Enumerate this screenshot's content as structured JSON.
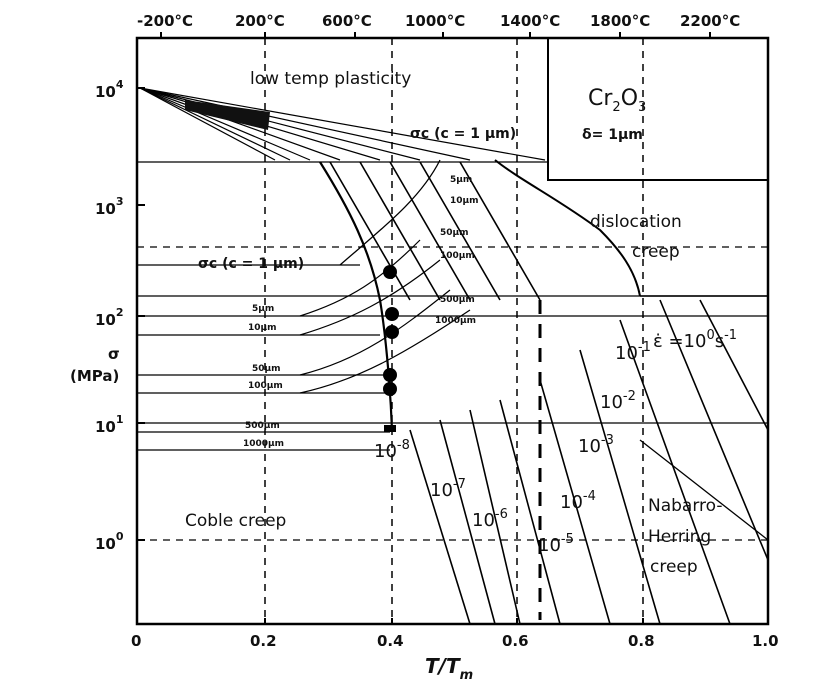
{
  "material": {
    "formula": "Cr",
    "subscript1": "2",
    "o": "O",
    "subscript2": "3",
    "delta": "δ= 1μm"
  },
  "x_axis": {
    "label": "T/T",
    "label_sub": "m",
    "ticks": [
      "0",
      "0.2",
      "0.4",
      "0.6",
      "0.8",
      "1.0"
    ]
  },
  "top_axis": {
    "ticks": [
      "-200°C",
      "200°C",
      "600°C",
      "1000°C",
      "1400°C",
      "1800°C",
      "2200°C"
    ]
  },
  "y_axis": {
    "label_line1": "σ",
    "label_line2": "(MPa)",
    "ticks": [
      {
        "base": "10",
        "exp": "4"
      },
      {
        "base": "10",
        "exp": "3"
      },
      {
        "base": "10",
        "exp": "2"
      },
      {
        "base": "10",
        "exp": "1"
      },
      {
        "base": "10",
        "exp": "0"
      }
    ]
  },
  "regions": {
    "low_temp": "low temp plasticity",
    "dislocation_1": "dislocation",
    "dislocation_2": "creep",
    "coble": "Coble creep",
    "nh_1": "Nabarro-",
    "nh_2": "Herring",
    "nh_3": "creep"
  },
  "sigma_labels": {
    "upper": "σc (c = 1 μm)",
    "lower": "σc (c = 1 μm)"
  },
  "grain_labels_left": [
    "5μm",
    "10μm",
    "50μm",
    "100μm",
    "500μm",
    "1000μm"
  ],
  "grain_labels_mid": [
    "5μm",
    "10μm",
    "50μm",
    "100μm",
    "500μm",
    "1000μm"
  ],
  "rate_labels": {
    "r0": "ε̇ =10",
    "r0_exp": "0",
    "r0_unit": "s",
    "r0_unit_exp": "-1",
    "r1": "10",
    "r1_exp": "-1",
    "r2": "10",
    "r2_exp": "-2",
    "r3": "10",
    "r3_exp": "-3",
    "r4": "10",
    "r4_exp": "-4",
    "r5": "10",
    "r5_exp": "-5",
    "r6": "10",
    "r6_exp": "-6",
    "r7": "10",
    "r7_exp": "-7",
    "r8": "10",
    "r8_exp": "-8"
  }
}
